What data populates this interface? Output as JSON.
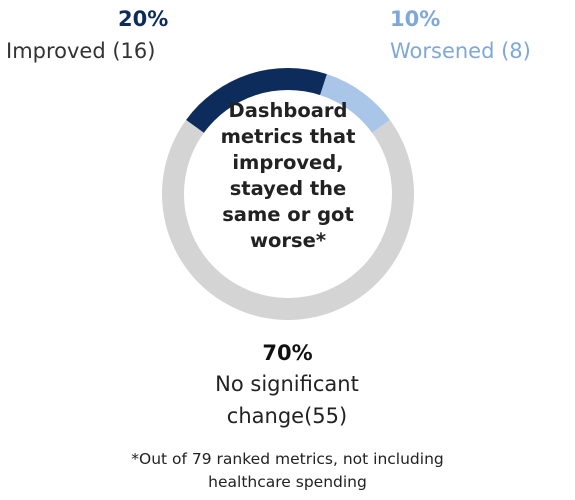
{
  "chart_data": {
    "type": "donut",
    "title": "Dashboard metrics that improved, stayed the same or got worse*",
    "categories": [
      "Improved (16)",
      "Worsened (8)",
      "No significant change(55)"
    ],
    "values": [
      20,
      10,
      70
    ],
    "value_labels": [
      "20%",
      "10%",
      "70%"
    ],
    "colors": [
      "#0d2c5c",
      "#a9c5e8",
      "#d4d4d4"
    ],
    "note": "*Out of 79 ranked metrics, not including healthcare spending"
  }
}
